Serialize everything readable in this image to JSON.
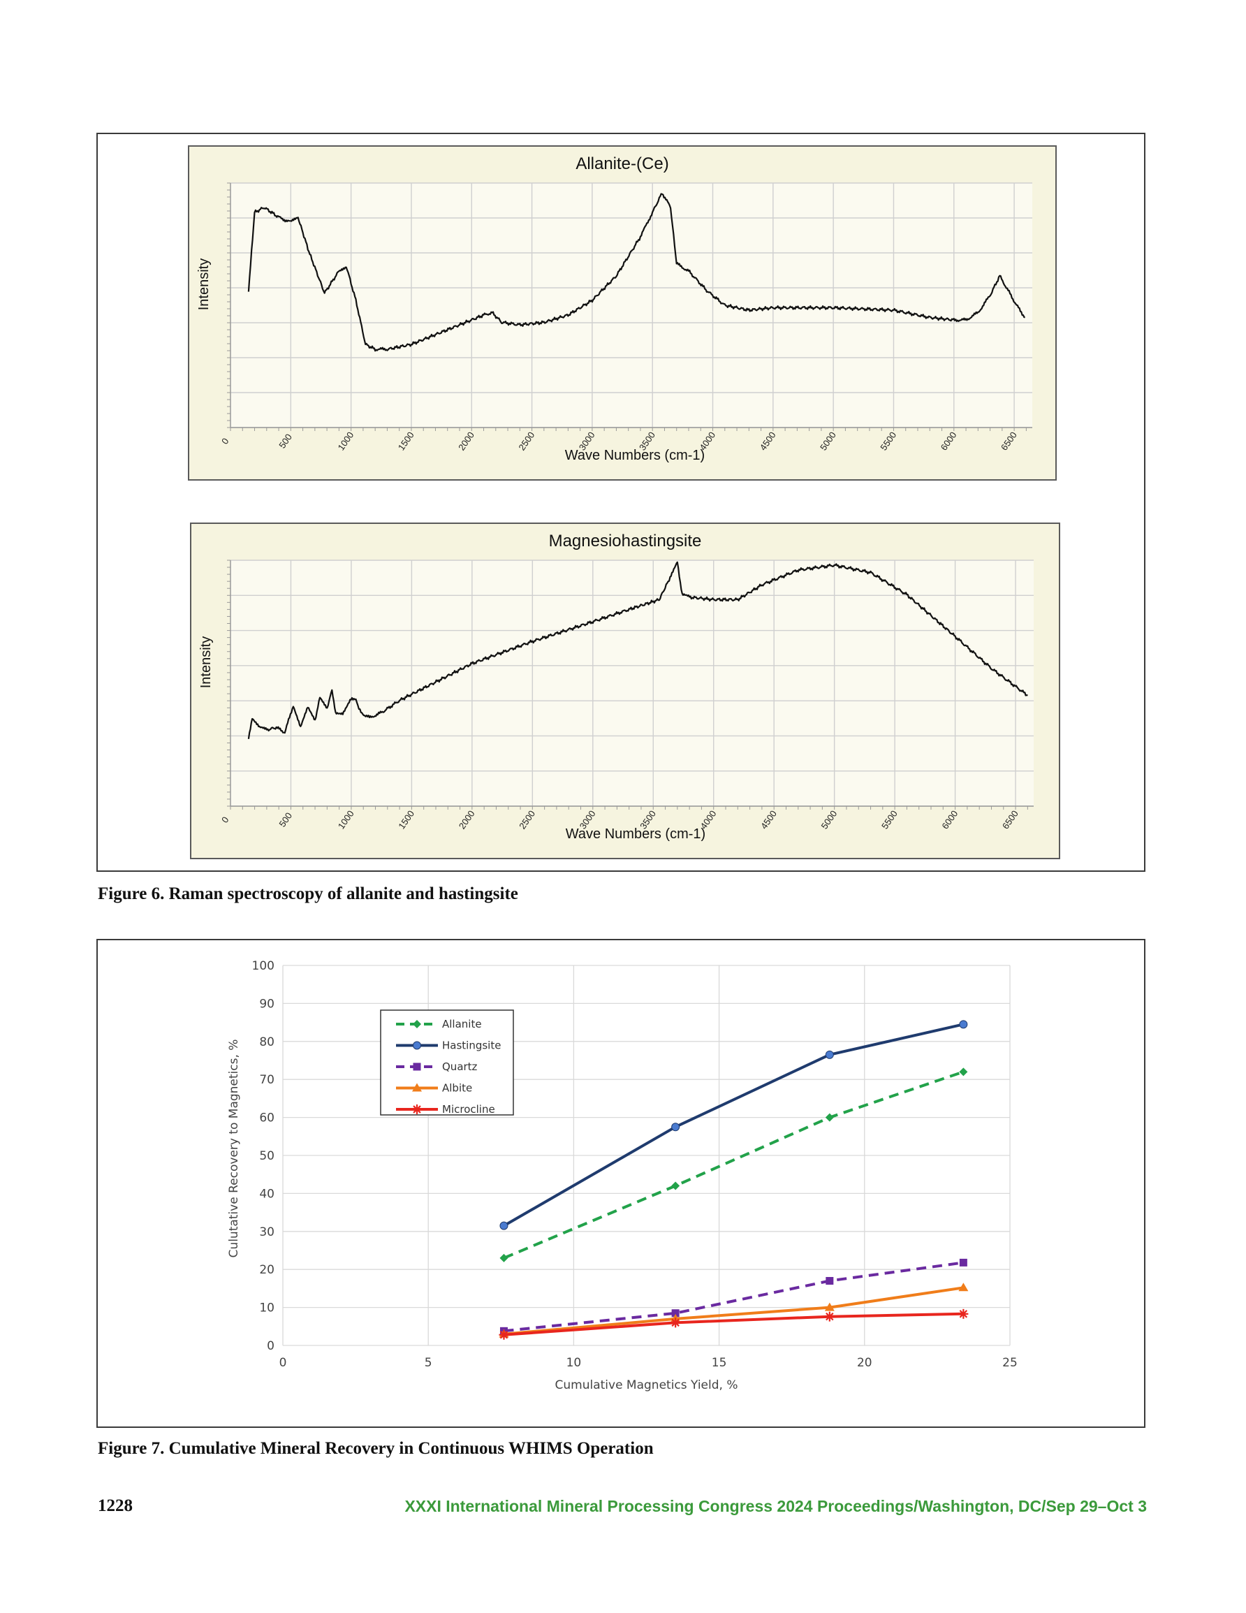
{
  "figure6": {
    "caption": "Figure 6. Raman spectroscopy of allanite and hastingsite",
    "panels": [
      {
        "title": "Allanite-(Ce)",
        "ylabel": "Intensity",
        "xlabel": "Wave Numbers (cm-1)"
      },
      {
        "title": "Magnesiohastingsite",
        "ylabel": "Intensity",
        "xlabel": "Wave Numbers (cm-1)"
      }
    ]
  },
  "figure7": {
    "caption": "Figure 7. Cumulative Mineral Recovery in Continuous WHIMS Operation"
  },
  "footer": {
    "page_number": "1228",
    "running_title": "XXXI International Mineral Processing Congress 2024 Proceedings/Washington, DC/Sep 29–Oct 3"
  },
  "colors": {
    "panel_bg": "#f6f4df",
    "footer_green": "#3b9a3b",
    "allanite": "#22a24a",
    "hastingsite": "#1f3b6e",
    "quartz": "#6a2aa0",
    "albite": "#f07d1a",
    "microcline": "#e8261e"
  },
  "chart_data": [
    {
      "type": "line",
      "title": "Allanite-(Ce)",
      "xlabel": "Wave Numbers (cm-1)",
      "ylabel": "Intensity",
      "x_tick_labels": [
        "0",
        "500",
        "1000",
        "1500",
        "2000",
        "2500",
        "3000",
        "3500",
        "4000",
        "4500",
        "5000",
        "5500",
        "6000",
        "6500"
      ],
      "xlim": [
        0,
        6650
      ],
      "ylim": [
        0,
        1
      ],
      "grid": true,
      "series": [
        {
          "x": [
            150,
            200,
            280,
            400,
            500,
            560,
            650,
            780,
            900,
            960,
            1040,
            1120,
            1200,
            1300,
            1500,
            1700,
            1900,
            2100,
            2170,
            2250,
            2400,
            2600,
            2800,
            3000,
            3200,
            3400,
            3500,
            3580,
            3650,
            3700,
            3800,
            3950,
            4100,
            4300,
            4500,
            5000,
            5500,
            5800,
            6000,
            6100,
            6200,
            6300,
            6380,
            6450,
            6520,
            6590
          ],
          "y": [
            0.56,
            0.88,
            0.9,
            0.86,
            0.84,
            0.86,
            0.72,
            0.55,
            0.64,
            0.66,
            0.52,
            0.34,
            0.32,
            0.32,
            0.34,
            0.38,
            0.42,
            0.46,
            0.47,
            0.43,
            0.42,
            0.43,
            0.46,
            0.52,
            0.62,
            0.78,
            0.88,
            0.96,
            0.9,
            0.67,
            0.64,
            0.56,
            0.5,
            0.48,
            0.49,
            0.49,
            0.48,
            0.45,
            0.44,
            0.44,
            0.47,
            0.54,
            0.62,
            0.56,
            0.5,
            0.45
          ]
        }
      ]
    },
    {
      "type": "line",
      "title": "Magnesiohastingsite",
      "xlabel": "Wave Numbers (cm-1)",
      "ylabel": "Intensity",
      "x_tick_labels": [
        "0",
        "500",
        "1000",
        "1500",
        "2000",
        "2500",
        "3000",
        "3500",
        "4000",
        "4500",
        "5000",
        "5500",
        "6000",
        "6500"
      ],
      "xlim": [
        0,
        6650
      ],
      "ylim": [
        0,
        1
      ],
      "grid": true,
      "series": [
        {
          "x": [
            150,
            180,
            240,
            300,
            380,
            450,
            520,
            580,
            640,
            700,
            740,
            800,
            840,
            870,
            930,
            990,
            1030,
            1080,
            1150,
            1250,
            1400,
            1600,
            2000,
            2500,
            3000,
            3300,
            3550,
            3640,
            3700,
            3740,
            3800,
            4000,
            4200,
            4400,
            4700,
            5000,
            5300,
            5600,
            6000,
            6300,
            6600
          ],
          "y": [
            0.28,
            0.36,
            0.32,
            0.31,
            0.32,
            0.3,
            0.41,
            0.32,
            0.4,
            0.35,
            0.44,
            0.4,
            0.47,
            0.38,
            0.38,
            0.43,
            0.44,
            0.38,
            0.36,
            0.38,
            0.43,
            0.48,
            0.58,
            0.67,
            0.75,
            0.8,
            0.84,
            0.93,
            0.99,
            0.86,
            0.85,
            0.84,
            0.84,
            0.9,
            0.96,
            0.98,
            0.95,
            0.86,
            0.69,
            0.56,
            0.45
          ]
        }
      ]
    },
    {
      "type": "line",
      "title": "",
      "xlabel": "Cumulative Magnetics Yield, %",
      "ylabel": "Culutative Recovery to Magnetics, %",
      "xlim": [
        0,
        25
      ],
      "ylim": [
        0,
        100
      ],
      "x_ticks": [
        0,
        5,
        10,
        15,
        20,
        25
      ],
      "y_ticks": [
        0,
        10,
        20,
        30,
        40,
        50,
        60,
        70,
        80,
        90,
        100
      ],
      "grid": true,
      "legend_position": "top-left",
      "x": [
        7.6,
        13.5,
        18.8,
        23.4
      ],
      "series": [
        {
          "name": "Allanite",
          "values": [
            23.0,
            42.0,
            60.0,
            72.0
          ],
          "color": "#22a24a",
          "dashed": true,
          "marker": "diamond"
        },
        {
          "name": "Hastingsite",
          "values": [
            31.5,
            57.5,
            76.5,
            84.5
          ],
          "color": "#1f3b6e",
          "dashed": false,
          "marker": "circle"
        },
        {
          "name": "Quartz",
          "values": [
            3.8,
            8.5,
            17.0,
            21.8
          ],
          "color": "#6a2aa0",
          "dashed": true,
          "marker": "square"
        },
        {
          "name": "Albite",
          "values": [
            3.0,
            7.0,
            10.0,
            15.2
          ],
          "color": "#f07d1a",
          "dashed": false,
          "marker": "triangle"
        },
        {
          "name": "Microcline",
          "values": [
            2.8,
            6.0,
            7.6,
            8.3
          ],
          "color": "#e8261e",
          "dashed": false,
          "marker": "star"
        }
      ]
    }
  ]
}
